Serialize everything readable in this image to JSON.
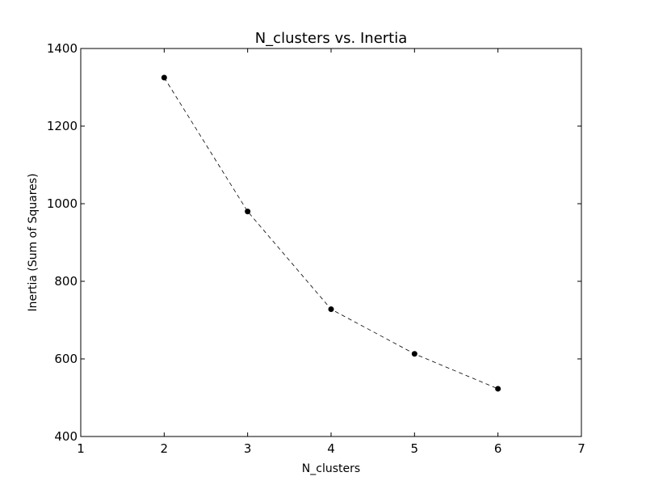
{
  "chart_data": {
    "type": "line",
    "title": "N_clusters vs. Inertia",
    "xlabel": "N_clusters",
    "ylabel": "Inertia (Sum of Squares)",
    "xlim": [
      1,
      7
    ],
    "ylim": [
      400,
      1400
    ],
    "x_ticks": [
      "1",
      "2",
      "3",
      "4",
      "5",
      "6",
      "7"
    ],
    "y_ticks": [
      "400",
      "600",
      "800",
      "1000",
      "1200",
      "1400"
    ],
    "grid": false,
    "line_style": "dashed",
    "marker": "circle",
    "series": [
      {
        "x": [
          2,
          3,
          4,
          5,
          6
        ],
        "y": [
          1325,
          980,
          728,
          613,
          523
        ]
      }
    ],
    "colors": {
      "line": "#000000",
      "marker": "#000000",
      "frame": "#000000",
      "background": "#ffffff"
    }
  }
}
